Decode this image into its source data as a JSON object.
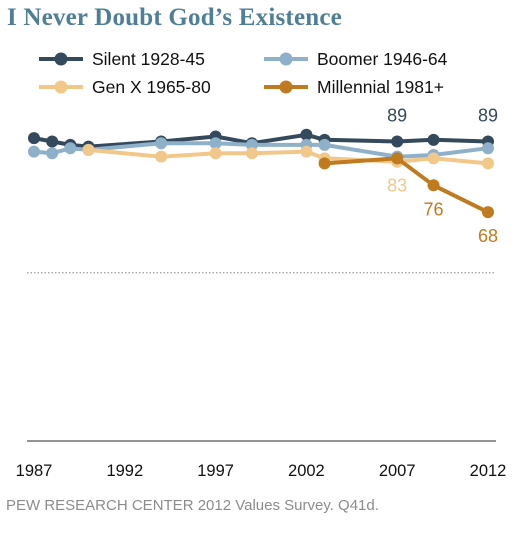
{
  "chart_data": {
    "type": "line",
    "title": "I Never Doubt God’s Existence",
    "xlabel": "",
    "ylabel": "",
    "x_ticks": [
      1987,
      1992,
      1997,
      2002,
      2007,
      2012
    ],
    "xlim": [
      1987,
      2012
    ],
    "ylim": [
      0,
      100
    ],
    "reference_line": 50,
    "grid": false,
    "legend_position": "top",
    "source": "PEW RESEARCH CENTER 2012 Values Survey. Q41d.",
    "series": [
      {
        "name": "Silent 1928-45",
        "color": "#34495c",
        "points": [
          [
            1987,
            90
          ],
          [
            1988,
            89
          ],
          [
            1989,
            88
          ],
          [
            1990,
            87.5
          ],
          [
            1994,
            89
          ],
          [
            1997,
            90.5
          ],
          [
            1999,
            88.5
          ],
          [
            2002,
            91
          ],
          [
            2003,
            89.5
          ],
          [
            2007,
            89
          ],
          [
            2009,
            89.5
          ],
          [
            2012,
            89
          ]
        ],
        "labels": [
          {
            "x": 2007,
            "text": "89",
            "pos": "above"
          },
          {
            "x": 2012,
            "text": "89",
            "pos": "above"
          }
        ]
      },
      {
        "name": "Boomer 1946-64",
        "color": "#8eb0c9",
        "points": [
          [
            1987,
            86
          ],
          [
            1988,
            85.5
          ],
          [
            1989,
            87
          ],
          [
            1990,
            86.5
          ],
          [
            1994,
            88.5
          ],
          [
            1997,
            88.5
          ],
          [
            1999,
            88
          ],
          [
            2002,
            88
          ],
          [
            2003,
            88
          ],
          [
            2007,
            84.5
          ],
          [
            2009,
            85
          ],
          [
            2012,
            87
          ]
        ],
        "labels": []
      },
      {
        "name": "Gen X 1965-80",
        "color": "#f2c88a",
        "points": [
          [
            1990,
            86.5
          ],
          [
            1994,
            84.5
          ],
          [
            1997,
            85.5
          ],
          [
            1999,
            85.5
          ],
          [
            2002,
            86
          ],
          [
            2003,
            84
          ],
          [
            2007,
            83
          ],
          [
            2009,
            84
          ],
          [
            2012,
            82.5
          ]
        ],
        "labels": [
          {
            "x": 2007,
            "text": "83",
            "pos": "below"
          }
        ]
      },
      {
        "name": "Millennial 1981+",
        "color": "#c07a1f",
        "points": [
          [
            2003,
            82.5
          ],
          [
            2007,
            84
          ],
          [
            2009,
            76
          ],
          [
            2012,
            68
          ]
        ],
        "labels": [
          {
            "x": 2009,
            "text": "76",
            "pos": "below"
          },
          {
            "x": 2012,
            "text": "68",
            "pos": "below"
          }
        ]
      }
    ]
  }
}
